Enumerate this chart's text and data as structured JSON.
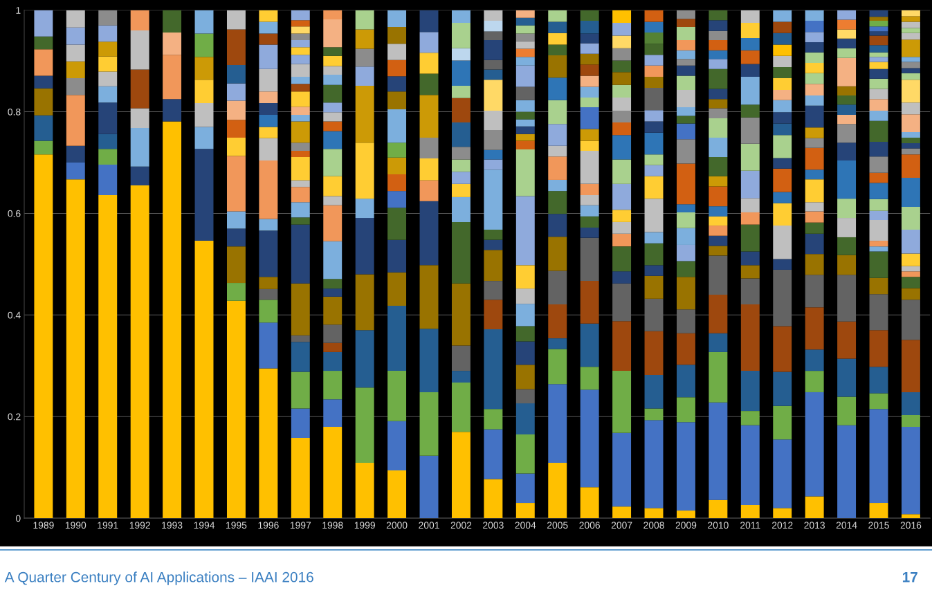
{
  "chart_data": {
    "type": "bar",
    "stacked": true,
    "grid": "y",
    "categories": [
      "1989",
      "1990",
      "1991",
      "1992",
      "1993",
      "1994",
      "1995",
      "1996",
      "1997",
      "1998",
      "1999",
      "2000",
      "2001",
      "2002",
      "2003",
      "2004",
      "2005",
      "2006",
      "2007",
      "2008",
      "2009",
      "2010",
      "2011",
      "2012",
      "2013",
      "2014",
      "2015",
      "2016"
    ],
    "ylim": [
      0,
      1
    ],
    "yticks": [
      0,
      0.2,
      0.4,
      0.6,
      0.8,
      1
    ],
    "annotations": [
      "A Quarter Century of AI Applications – IAAI 2016",
      "17"
    ],
    "series": [
      {
        "values": [
          0.716,
          0.667,
          0.636,
          0.655,
          0.781,
          0.546,
          0.428,
          0.295,
          0.158,
          0.18,
          0.109,
          0.094,
          0.123,
          0.17,
          0.077,
          0.03,
          0.109,
          0.061,
          0.023,
          0.02,
          0.015,
          0.036,
          0.026,
          0.02,
          0.043,
          0.183,
          0.03,
          0.008
        ],
        "colors": [
          "#ffc000",
          "#ffc000",
          "#ffc000",
          "#ffc000",
          "#ffc000",
          "#ffc000",
          "#ffc000",
          "#ffc000",
          "#ffc000",
          "#ffc000",
          "#ffc000",
          "#ffc000",
          "#4472c4",
          "#ffc000",
          "#ffc000",
          "#ffc000",
          "#ffc000",
          "#ffc000",
          "#ffc000",
          "#ffc000",
          "#ffc000",
          "#ffc000",
          "#ffc000",
          "#ffc000",
          "#ffc000",
          "#4472c4",
          "#ffc000",
          "#ffc000"
        ]
      },
      {
        "values": [
          0.027,
          0.033,
          0.06,
          0.037,
          0.044,
          0.181,
          0.035,
          0.09,
          0.058,
          0.054,
          0.148,
          0.097,
          0.125,
          0.097,
          0.098,
          0.058,
          0.155,
          0.192,
          0.145,
          0.173,
          0.174,
          0.192,
          0.157,
          0.135,
          0.205,
          0.056,
          0.185,
          0.172
        ],
        "colors": [
          "#70ad47",
          "#4472c4",
          "#4472c4",
          "#264478",
          "#264478",
          "#264478",
          "#70ad47",
          "#4472c4",
          "#4472c4",
          "#4472c4",
          "#70ad47",
          "#4472c4",
          "#70ad47",
          "#70ad47",
          "#4472c4",
          "#4472c4",
          "#4472c4",
          "#4472c4",
          "#4472c4",
          "#4472c4",
          "#4472c4",
          "#4472c4",
          "#4472c4",
          "#4472c4",
          "#4472c4",
          "#70ad47",
          "#4472c4",
          "#4472c4"
        ]
      },
      {
        "values": [
          0.05,
          0.033,
          0.031,
          0.076,
          0.087,
          0.043,
          0.072,
          0.045,
          0.072,
          0.056,
          0.113,
          0.099,
          0.125,
          0.023,
          0.04,
          0.077,
          0.069,
          0.045,
          0.122,
          0.023,
          0.049,
          0.099,
          0.028,
          0.066,
          0.042,
          0.075,
          0.031,
          0.023
        ],
        "colors": [
          "#255e91",
          "#264478",
          "#70ad47",
          "#7cafdd",
          "#f1975a",
          "#7cafdd",
          "#997300",
          "#70ad47",
          "#70ad47",
          "#70ad47",
          "#255e91",
          "#70ad47",
          "#255e91",
          "#255e91",
          "#70ad47",
          "#70ad47",
          "#70ad47",
          "#70ad47",
          "#70ad47",
          "#70ad47",
          "#70ad47",
          "#70ad47",
          "#70ad47",
          "#70ad47",
          "#70ad47",
          "#255e91",
          "#70ad47",
          "#70ad47"
        ]
      },
      {
        "values": [
          0.053,
          0.1,
          0.029,
          0.039,
          0.044,
          0.047,
          0.035,
          0.021,
          0.059,
          0.037,
          0.11,
          0.128,
          0.125,
          0.05,
          0.157,
          0.061,
          0.021,
          0.085,
          0.098,
          0.066,
          0.064,
          0.037,
          0.079,
          0.067,
          0.042,
          0.073,
          0.052,
          0.045
        ],
        "colors": [
          "#997300",
          "#f1975a",
          "#255e91",
          "#bfbfbf",
          "#f4b183",
          "#bfbfbf",
          "#264478",
          "#636363",
          "#255e91",
          "#255e91",
          "#997300",
          "#255e91",
          "#997300",
          "#636363",
          "#255e91",
          "#255e91",
          "#255e91",
          "#255e91",
          "#9e480e",
          "#255e91",
          "#255e91",
          "#255e91",
          "#255e91",
          "#255e91",
          "#255e91",
          "#9e480e",
          "#255e91",
          "#255e91"
        ]
      },
      {
        "values": [
          0.025,
          0.033,
          0.062,
          0.076,
          0.044,
          0.046,
          0.034,
          0.024,
          0.013,
          0.018,
          0.111,
          0.066,
          0.126,
          0.122,
          0.058,
          0.028,
          0.067,
          0.084,
          0.074,
          0.086,
          0.062,
          0.076,
          0.131,
          0.09,
          0.083,
          0.092,
          0.072,
          0.103
        ],
        "colors": [
          "#264478",
          "#8c8c8c",
          "#264478",
          "#9e480e",
          "#43682b",
          "#ffcd33",
          "#7cafdd",
          "#997300",
          "#636363",
          "#9e480e",
          "#264478",
          "#997300",
          "#264478",
          "#997300",
          "#9e480e",
          "#636363",
          "#9e480e",
          "#9e480e",
          "#636363",
          "#9e480e",
          "#9e480e",
          "#9e480e",
          "#9e480e",
          "#9e480e",
          "#9e480e",
          "#636363",
          "#9e480e",
          "#9e480e"
        ]
      },
      {
        "values": [
          0.052,
          0.033,
          0.032,
          0.077,
          null,
          0.045,
          0.109,
          0.091,
          0.102,
          0.036,
          0.038,
          0.064,
          0.041,
          0.121,
          0.037,
          0.048,
          0.066,
          0.085,
          0.024,
          0.064,
          0.047,
          0.077,
          0.051,
          0.111,
          0.064,
          0.039,
          0.071,
          0.079
        ],
        "colors": [
          "#f1975a",
          "#cc9a06",
          "#7cafdd",
          "#bfbfbf",
          null,
          "#cc9a06",
          "#f1975a",
          "#264478",
          "#997300",
          "#636363",
          "#7cafdd",
          "#264478",
          "#f1975a",
          "#43682b",
          "#636363",
          "#997300",
          "#636363",
          "#636363",
          "#264478",
          "#636363",
          "#636363",
          "#636363",
          "#636363",
          "#636363",
          "#636363",
          "#997300",
          "#636363",
          "#636363"
        ]
      },
      {
        "values": [
          0.025,
          0.033,
          0.029,
          0.04,
          null,
          0.046,
          0.036,
          0.023,
          0.116,
          0.055,
          0.11,
          0.063,
          0.043,
          0.049,
          0.061,
          0.046,
          0.067,
          0.02,
          0.049,
          0.045,
          0.064,
          0.019,
          0.026,
          0.021,
          0.041,
          0.035,
          0.032,
          0.023
        ],
        "colors": [
          "#43682b",
          "#bfbfbf",
          "#bfbfbf",
          "#f1975a",
          null,
          "#70ad47",
          "#ffcd33",
          "#7cafdd",
          "#264478",
          "#997300",
          "#ffcd33",
          "#43682b",
          "#ffcd33",
          "#7cafdd",
          "#997300",
          "#264478",
          "#997300",
          "#264478",
          "#43682b",
          "#997300",
          "#997300",
          "#997300",
          "#997300",
          "#264478",
          "#997300",
          "#43682b",
          "#997300",
          "#997300"
        ]
      },
      {
        "values": [
          0.052,
          0.034,
          0.03,
          null,
          null,
          0.046,
          0.035,
          0.115,
          0.014,
          0.016,
          0.112,
          0.033,
          0.041,
          0.026,
          0.02,
          0.03,
          0.045,
          0.022,
          0.025,
          0.021,
          0.031,
          0.02,
          0.027,
          0.066,
          0.04,
          0.038,
          0.052,
          0.022
        ],
        "colors": [
          "#8faadc",
          "#8faadc",
          "#ffcd33",
          null,
          null,
          "#7cafdd",
          "#d26012",
          "#f1975a",
          "#43682b",
          "#264478",
          "#cc9a06",
          "#4472c4",
          "#8c8c8c",
          "#ffcd33",
          "#264478",
          "#43682b",
          "#264478",
          "#43682b",
          "#f1975a",
          "#264478",
          "#43682b",
          "#264478",
          "#264478",
          "#bfbfbf",
          "#264478",
          "#bfbfbf",
          "#43682b",
          "#43682b"
        ]
      },
      {
        "values": [
          null,
          0.034,
          0.029,
          null,
          null,
          null,
          0.038,
          0.044,
          0.03,
          0.019,
          0.038,
          0.033,
          0.084,
          0.024,
          0.02,
          0.044,
          0.045,
          0.022,
          0.023,
          0.043,
          0.032,
          0.02,
          0.053,
          0.044,
          0.022,
          0.038,
          0.01,
          0.011
        ],
        "colors": [
          null,
          "#bfbfbf",
          "#cc9a06",
          null,
          null,
          null,
          "#f4b183",
          "#bfbfbf",
          "#7cafdd",
          "#43682b",
          "#8faadc",
          "#d26012",
          "#cc9a06",
          "#8faadc",
          "#43682b",
          "#7cafdd",
          "#43682b",
          "#7cafdd",
          "#bfbfbf",
          "#43682b",
          "#8faadc",
          "#f1975a",
          "#43682b",
          "#ffcd33",
          "#43682b",
          "#a9d18e",
          "#7cafdd",
          "#f1975a"
        ]
      },
      {
        "values": [
          null,
          null,
          0.032,
          null,
          null,
          null,
          0.034,
          0.022,
          0.03,
          0.074,
          0.035,
          0.033,
          0.042,
          0.024,
          0.118,
          0.03,
          0.022,
          0.02,
          0.024,
          0.022,
          0.033,
          0.018,
          0.024,
          0.022,
          0.022,
          0.075,
          0.011,
          0.01
        ],
        "colors": [
          null,
          null,
          "#8faadc",
          null,
          null,
          null,
          "#8faadc",
          "#ffcd33",
          "#f1975a",
          "#7cafdd",
          "#8c8c8c",
          "#cc9a06",
          "#43682b",
          "#a9d18e",
          "#7cafdd",
          "#bfbfbf",
          "#7cafdd",
          "#bfbfbf",
          "#ffcd33",
          "#7cafdd",
          "#7cafdd",
          "#ffcd33",
          "#f1975a",
          "#2e75b6",
          "#f1975a",
          "#2e75b6",
          "#f1975a",
          "#bfbfbf"
        ]
      },
      {
        "values": [
          null,
          null,
          0.03,
          null,
          null,
          null,
          0.036,
          0.024,
          0.013,
          0.071,
          0.038,
          0.029,
          0.041,
          0.025,
          0.02,
          0.046,
          0.046,
          0.022,
          0.051,
          0.066,
          0.031,
          0.02,
          0.028,
          0.046,
          0.018,
          0.035,
          0.041,
          0.025
        ],
        "colors": [
          null,
          null,
          "#8c8c8c",
          null,
          null,
          null,
          "#255e91",
          "#2e75b6",
          "#bfbfbf",
          "#f1975a",
          "#cc9a06",
          "#70ad47",
          "#ffcd33",
          "#8c8c8c",
          "#8faadc",
          "#ffcd33",
          "#f1975a",
          "#f1975a",
          "#8faadc",
          "#bfbfbf",
          "#a9d18e",
          "#2e75b6",
          "#bfbfbf",
          "#d26012",
          "#bfbfbf",
          "#264478",
          "#bfbfbf",
          "#ffcd33"
        ]
      },
      {
        "values": [
          null,
          null,
          null,
          null,
          null,
          null,
          0.07,
          0.023,
          0.046,
          0.018,
          0.038,
          0.066,
          0.041,
          0.048,
          0.019,
          0.136,
          0.021,
          0.065,
          0.048,
          0.044,
          0.016,
          0.039,
          0.054,
          0.021,
          0.045,
          0.037,
          0.018,
          0.047
        ],
        "colors": [
          null,
          null,
          null,
          null,
          null,
          null,
          "#9e480e",
          "#264478",
          "#ffcd33",
          "#bfbfbf",
          "#a9d18e",
          "#7cafdd",
          "#8faadc",
          "#255e91",
          "#2e75b6",
          "#8faadc",
          "#bfbfbf",
          "#bfbfbf",
          "#a9d18e",
          "#ffcd33",
          "#2e75b6",
          "#d26012",
          "#8faadc",
          "#264478",
          "#ffcd33",
          "#8c8c8c",
          "#8faadc",
          "#8faadc"
        ]
      },
      {
        "values": [
          null,
          null,
          null,
          null,
          null,
          null,
          0.038,
          0.023,
          0.012,
          0.039,
          null,
          0.035,
          0.043,
          0.048,
          0.039,
          0.092,
          0.043,
          0.02,
          0.048,
          0.022,
          0.08,
          0.02,
          0.053,
          0.045,
          0.019,
          0.018,
          0.023,
          0.045
        ],
        "colors": [
          null,
          null,
          null,
          null,
          null,
          null,
          "#bfbfbf",
          "#f4b183",
          "#d26012",
          "#ffcd33",
          null,
          "#997300",
          "#264478",
          "#9e480e",
          "#8c8c8c",
          "#a9d18e",
          "#8faadc",
          "#ffcd33",
          "#2e75b6",
          "#8faadc",
          "#d26012",
          "#cc9a06",
          "#a9d18e",
          "#a9d18e",
          "#2e75b6",
          "#f4b183",
          "#a9d18e",
          "#a9d18e"
        ]
      },
      {
        "values": [
          null,
          null,
          null,
          null,
          null,
          null,
          null,
          0.044,
          0.016,
          0.054,
          null,
          0.03,
          null,
          0.024,
          0.038,
          0.017,
          0.047,
          0.023,
          0.025,
          0.021,
          0.048,
          0.038,
          0.052,
          0.023,
          0.043,
          0.02,
          0.032,
          0.057
        ],
        "colors": [
          null,
          null,
          null,
          null,
          null,
          null,
          null,
          "#bfbfbf",
          "#8c8c8c",
          "#a9d18e",
          null,
          "#264478",
          null,
          "#a9d18e",
          "#bfbfbf",
          "#d26012",
          "#a9d18e",
          "#cc9a06",
          "#d26012",
          "#a9d18e",
          "#8c8c8c",
          "#43682b",
          "#8c8c8c",
          "#255e91",
          "#d26012",
          "#255e91",
          "#2e75b6",
          "#2e75b6"
        ]
      },
      {
        "values": [
          null,
          null,
          null,
          null,
          null,
          null,
          null,
          0.048,
          0.042,
          0.035,
          null,
          0.032,
          null,
          0.05,
          0.061,
          0.013,
          0.044,
          0.043,
          0.023,
          0.043,
          0.031,
          0.038,
          0.025,
          0.022,
          0.019,
          0.018,
          0.02,
          0.046
        ],
        "colors": [
          null,
          null,
          null,
          null,
          null,
          null,
          null,
          "#8faadc",
          "#cc9a06",
          "#2e75b6",
          null,
          "#d26012",
          null,
          "#2e75b6",
          "#ffd966",
          "#cc9a06",
          "#2e75b6",
          "#4472c4",
          "#8c8c8c",
          "#2e75b6",
          "#4472c4",
          "#7cafdd",
          "#43682b",
          "#264478",
          "#8c8c8c",
          "#43682b",
          "#d26012",
          "#d26012"
        ]
      },
      {
        "values": [
          null,
          null,
          null,
          null,
          null,
          null,
          null,
          0.022,
          0.013,
          0.019,
          null,
          0.032,
          null,
          0.024,
          0.02,
          0.015,
          0.044,
          0.019,
          0.026,
          0.022,
          0.015,
          0.038,
          0.055,
          0.024,
          0.021,
          0.018,
          0.032,
          0.012
        ],
        "colors": [
          null,
          null,
          null,
          null,
          null,
          null,
          null,
          "#9e480e",
          "#7cafdd",
          "#d26012",
          null,
          "#bfbfbf",
          null,
          "#bdd7ee",
          "#255e91",
          "#264478",
          "#997300",
          "#a9d18e",
          "#bfbfbf",
          "#264478",
          "#43682b",
          "#a9d18e",
          "#7cafdd",
          "#7cafdd",
          "#cc9a06",
          "#997300",
          "#8c8c8c",
          "#8c8c8c"
        ]
      },
      {
        "values": [
          null,
          null,
          null,
          null,
          null,
          null,
          null,
          0.023,
          0.016,
          0.018,
          null,
          0.033,
          null,
          0.05,
          0.019,
          0.014,
          0.021,
          0.021,
          0.025,
          0.022,
          0.017,
          0.02,
          0.025,
          0.02,
          0.043,
          0.056,
          0.029,
          0.01
        ],
        "colors": [
          null,
          null,
          null,
          null,
          null,
          null,
          null,
          "#7cafdd",
          "#f4b183",
          "#bfbfbf",
          null,
          "#997300",
          null,
          "#a9d18e",
          "#636363",
          "#7cafdd",
          "#43682b",
          "#7cafdd",
          "#a9d18e",
          "#8faadc",
          "#7cafdd",
          "#8c8c8c",
          "#264478",
          "#f4b183",
          "#264478",
          "#f4b183",
          "#264478",
          "#264478"
        ]
      },
      {
        "values": [
          null,
          null,
          null,
          null,
          null,
          null,
          null,
          0.023,
          0.03,
          0.019,
          null,
          0.033,
          null,
          0.025,
          0.039,
          0.015,
          0.023,
          0.022,
          0.025,
          0.044,
          0.034,
          0.018,
          0.027,
          0.023,
          0.02,
          0.019,
          0.041,
          0.011
        ],
        "colors": [
          null,
          null,
          null,
          null,
          null,
          null,
          null,
          "#ffcd33",
          "#ffcd33",
          "#8faadc",
          null,
          "#7cafdd",
          null,
          "#7cafdd",
          "#264478",
          "#43682b",
          "#ffcd33",
          "#f4b183",
          "#997300",
          "#636363",
          "#bfbfbf",
          "#997300",
          "#d26012",
          "#ffcd33",
          "#7cafdd",
          "#a9d18e",
          "#43682b",
          "#43682b"
        ]
      },
      {
        "values": [
          null,
          null,
          null,
          null,
          null,
          null,
          null,
          null,
          0.015,
          0.035,
          null,
          null,
          null,
          null,
          0.017,
          0.023,
          0.022,
          0.022,
          0.023,
          0.022,
          0.028,
          0.02,
          0.024,
          0.022,
          0.023,
          0.019,
          0.02,
          0.011
        ],
        "colors": [
          null,
          null,
          null,
          null,
          null,
          null,
          null,
          null,
          "#9e480e",
          "#43682b",
          null,
          null,
          null,
          null,
          "#636363",
          "#7cafdd",
          "#255e91",
          "#9e480e",
          "#43682b",
          "#997300",
          "#a9d18e",
          "#264478",
          "#2e75b6",
          "#43682b",
          "#f4b183",
          "#264478",
          "#7cafdd",
          "#7cafdd"
        ]
      },
      {
        "values": [
          null,
          null,
          null,
          null,
          null,
          null,
          null,
          null,
          0.014,
          0.02,
          null,
          null,
          null,
          null,
          0.021,
          0.026,
          0.023,
          0.021,
          0.024,
          0.022,
          0.02,
          0.039,
          0.03,
          0.022,
          0.021,
          0.018,
          0.023,
          0.035
        ],
        "colors": [
          null,
          null,
          null,
          null,
          null,
          null,
          null,
          null,
          "#7cafdd",
          "#7cafdd",
          null,
          null,
          null,
          null,
          "#bdd7ee",
          "#636363",
          "#a9d18e",
          "#997300",
          "#8c8c8c",
          "#f1975a",
          "#264478",
          "#43682b",
          "#ffcd33",
          "#bfbfbf",
          "#a9d18e",
          "#ffd966",
          "#f4b183",
          "#f4b183"
        ]
      },
      {
        "values": [
          null,
          null,
          null,
          null,
          null,
          null,
          null,
          null,
          0.025,
          0.017,
          null,
          null,
          null,
          null,
          0.021,
          0.042,
          null,
          0.021,
          0.025,
          0.021,
          0.013,
          0.02,
          0.025,
          0.022,
          0.02,
          0.019,
          0.02,
          0.023
        ],
        "colors": [
          null,
          null,
          null,
          null,
          null,
          null,
          null,
          null,
          "#bfbfbf",
          "#bfbfbf",
          null,
          null,
          null,
          null,
          "#bfbfbf",
          "#8faadc",
          null,
          "#8faadc",
          "#ffd966",
          "#8faadc",
          "#8c8c8c",
          "#8faadc",
          "#bfbfbf",
          "#ffc000",
          "#ffcd33",
          "#ed7d31",
          "#bfbfbf",
          "#bfbfbf"
        ]
      },
      {
        "values": [
          null,
          null,
          null,
          null,
          null,
          null,
          null,
          null,
          0.018,
          0.02,
          null,
          null,
          null,
          null,
          null,
          0.017,
          null,
          0.019,
          0.025,
          0.022,
          0.017,
          0.017,
          null,
          0.023,
          0.021,
          0.019,
          0.02,
          0.045
        ],
        "colors": [
          null,
          null,
          null,
          null,
          null,
          null,
          null,
          null,
          "#8faadc",
          "#ffcd33",
          null,
          null,
          null,
          null,
          null,
          "#7cafdd",
          null,
          "#264478",
          "#8faadc",
          "#43682b",
          "#7cafdd",
          "#2e75b6",
          null,
          "#255e91",
          "#a9d18e",
          "#8faadc",
          "#a9d18e",
          "#ffd966"
        ]
      },
      {
        "values": [
          null,
          null,
          null,
          null,
          null,
          null,
          null,
          null,
          0.015,
          0.017,
          null,
          null,
          null,
          null,
          null,
          0.016,
          null,
          0.025,
          0.025,
          0.022,
          0.02,
          0.02,
          null,
          0.022,
          0.02,
          null,
          0.019,
          0.013
        ],
        "colors": [
          null,
          null,
          null,
          null,
          null,
          null,
          null,
          null,
          "#ffcd33",
          "#43682b",
          null,
          null,
          null,
          null,
          null,
          "#ed7d31",
          null,
          "#255e91",
          "#ffc000",
          "#548235",
          "#f1975a",
          "#d26012",
          null,
          "#9e480e",
          "#264478",
          null,
          "#264478",
          "#a9d18e"
        ]
      },
      {
        "values": [
          null,
          null,
          null,
          null,
          null,
          null,
          null,
          null,
          0.014,
          0.055,
          null,
          null,
          null,
          null,
          null,
          0.015,
          null,
          0.021,
          null,
          0.021,
          0.026,
          0.018,
          null,
          0.023,
          0.02,
          null,
          0.014,
          0.01
        ],
        "colors": [
          null,
          null,
          null,
          null,
          null,
          null,
          null,
          null,
          "#8faadc",
          "#f4b183",
          null,
          null,
          null,
          null,
          null,
          "#bfbfbf",
          null,
          "#43682b",
          null,
          "#2e75b6",
          "#a9d18e",
          "#8c8c8c",
          null,
          "#7cafdd",
          "#8faadc",
          null,
          "#ffcd33",
          "#264478"
        ]
      },
      {
        "values": [
          null,
          null,
          null,
          null,
          null,
          null,
          null,
          null,
          0.013,
          0.018,
          null,
          null,
          null,
          null,
          null,
          0.015,
          null,
          null,
          null,
          0.023,
          0.016,
          0.021,
          null,
          null,
          0.022,
          null,
          0.01,
          0.012
        ],
        "colors": [
          null,
          null,
          null,
          null,
          null,
          null,
          null,
          null,
          "#8c8c8c",
          "#f1975a",
          null,
          null,
          null,
          null,
          null,
          "#8c8c8c",
          null,
          null,
          null,
          "#d26012",
          "#9e480e",
          "#264478",
          null,
          null,
          "#4472c4",
          null,
          "#8faadc",
          "#8c8c8c"
        ]
      },
      {
        "values": [
          null,
          null,
          null,
          null,
          null,
          null,
          null,
          null,
          0.014,
          null,
          null,
          null,
          null,
          null,
          null,
          0.016,
          null,
          null,
          null,
          null,
          0.017,
          0.02,
          null,
          null,
          0.021,
          null,
          0.009,
          0.01
        ],
        "colors": [
          null,
          null,
          null,
          null,
          null,
          null,
          null,
          null,
          "#ffd966",
          null,
          null,
          null,
          null,
          null,
          null,
          "#a9d18e",
          null,
          null,
          null,
          null,
          "#8c8c8c",
          "#43682b",
          null,
          null,
          "#7cafdd",
          null,
          "#a9d18e",
          "#7cafdd"
        ]
      },
      {
        "values": [
          null,
          null,
          null,
          null,
          null,
          null,
          null,
          null,
          0.012,
          null,
          null,
          null,
          null,
          null,
          null,
          0.015,
          null,
          null,
          null,
          null,
          null,
          null,
          null,
          null,
          null,
          null,
          0.014,
          0.034
        ],
        "colors": [
          null,
          null,
          null,
          null,
          null,
          null,
          null,
          null,
          "#d26012",
          null,
          null,
          null,
          null,
          null,
          null,
          "#255e91",
          null,
          null,
          null,
          null,
          null,
          null,
          null,
          null,
          null,
          null,
          "#255e91",
          "#cc9a06"
        ]
      },
      {
        "values": [
          null,
          null,
          null,
          null,
          null,
          null,
          null,
          null,
          0.02,
          null,
          null,
          null,
          null,
          null,
          null,
          0.015,
          null,
          null,
          null,
          null,
          null,
          null,
          null,
          null,
          null,
          null,
          0.019,
          0.013
        ],
        "colors": [
          null,
          null,
          null,
          null,
          null,
          null,
          null,
          null,
          "#8faadc",
          null,
          null,
          null,
          null,
          null,
          null,
          "#f4b183",
          null,
          null,
          null,
          null,
          null,
          null,
          null,
          null,
          null,
          null,
          "#9e480e",
          "#bfbfbf"
        ]
      },
      {
        "values": [
          null,
          null,
          null,
          null,
          null,
          null,
          null,
          null,
          null,
          null,
          null,
          null,
          null,
          null,
          null,
          null,
          null,
          null,
          null,
          null,
          null,
          null,
          null,
          null,
          null,
          null,
          0.008,
          0.01
        ],
        "colors": [
          null,
          null,
          null,
          null,
          null,
          null,
          null,
          null,
          null,
          null,
          null,
          null,
          null,
          null,
          null,
          null,
          null,
          null,
          null,
          null,
          null,
          null,
          null,
          null,
          null,
          null,
          "#264478",
          "#a9d18e"
        ]
      },
      {
        "values": [
          null,
          null,
          null,
          null,
          null,
          null,
          null,
          null,
          null,
          null,
          null,
          null,
          null,
          null,
          null,
          null,
          null,
          null,
          null,
          null,
          null,
          null,
          null,
          null,
          null,
          null,
          0.01,
          0.012
        ],
        "colors": [
          null,
          null,
          null,
          null,
          null,
          null,
          null,
          null,
          null,
          null,
          null,
          null,
          null,
          null,
          null,
          null,
          null,
          null,
          null,
          null,
          null,
          null,
          null,
          null,
          null,
          null,
          "#4472c4",
          "#bfbfbf"
        ]
      },
      {
        "values": [
          null,
          null,
          null,
          null,
          null,
          null,
          null,
          null,
          null,
          null,
          null,
          null,
          null,
          null,
          null,
          null,
          null,
          null,
          null,
          null,
          null,
          null,
          null,
          null,
          null,
          null,
          0.011,
          0.011
        ],
        "colors": [
          null,
          null,
          null,
          null,
          null,
          null,
          null,
          null,
          null,
          null,
          null,
          null,
          null,
          null,
          null,
          null,
          null,
          null,
          null,
          null,
          null,
          null,
          null,
          null,
          null,
          null,
          "#70ad47",
          "#cc9a06"
        ]
      },
      {
        "values": [
          null,
          null,
          null,
          null,
          null,
          null,
          null,
          null,
          null,
          null,
          null,
          null,
          null,
          null,
          null,
          null,
          null,
          null,
          null,
          null,
          null,
          null,
          null,
          null,
          null,
          null,
          0.008,
          0.012
        ],
        "colors": [
          null,
          null,
          null,
          null,
          null,
          null,
          null,
          null,
          null,
          null,
          null,
          null,
          null,
          null,
          null,
          null,
          null,
          null,
          null,
          null,
          null,
          null,
          null,
          null,
          null,
          null,
          "#997300",
          "#ffd966"
        ]
      },
      {
        "values": [
          null,
          null,
          null,
          null,
          null,
          null,
          null,
          null,
          null,
          null,
          null,
          null,
          null,
          null,
          null,
          null,
          null,
          null,
          null,
          null,
          null,
          null,
          null,
          null,
          null,
          null,
          0.013,
          null
        ],
        "colors": [
          null,
          null,
          null,
          null,
          null,
          null,
          null,
          null,
          null,
          null,
          null,
          null,
          null,
          null,
          null,
          null,
          null,
          null,
          null,
          null,
          null,
          null,
          null,
          null,
          null,
          null,
          "#264478",
          null
        ]
      }
    ]
  }
}
